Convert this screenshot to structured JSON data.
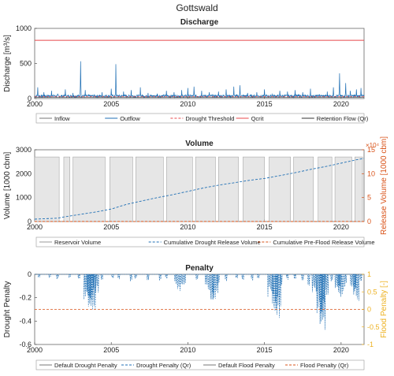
{
  "figure_title": "Gottswald",
  "colors": {
    "blue": "#1f6fb4",
    "red": "#e8484b",
    "orange": "#d95319",
    "gold": "#edb120",
    "gray": "#9a9a9a",
    "lightgray": "#e6e6e6",
    "dark": "#333333"
  },
  "chart_data": [
    {
      "type": "line",
      "title": "Discharge",
      "ylabel": "Discharge [m³/s]",
      "xlabel": "",
      "xlim": [
        2000,
        2021.5
      ],
      "ylim": [
        0,
        1000
      ],
      "yticks": [
        0,
        500,
        1000
      ],
      "xticks": [
        2000,
        2005,
        2010,
        2015,
        2020
      ],
      "grid": false,
      "legend": [
        "Inflow",
        "Outflow",
        "Drought Threshold",
        "Qcrit",
        "Retention Flow (Qr)"
      ],
      "series": [
        {
          "name": "Outflow",
          "style": "solid-blue",
          "peaks": [
            [
              2000.2,
              160
            ],
            [
              2000.6,
              90
            ],
            [
              2001.1,
              110
            ],
            [
              2001.5,
              70
            ],
            [
              2002.0,
              130
            ],
            [
              2002.5,
              80
            ],
            [
              2003.0,
              530
            ],
            [
              2003.3,
              120
            ],
            [
              2003.9,
              60
            ],
            [
              2004.4,
              90
            ],
            [
              2005.0,
              140
            ],
            [
              2005.3,
              490
            ],
            [
              2005.8,
              100
            ],
            [
              2006.3,
              120
            ],
            [
              2006.9,
              160
            ],
            [
              2007.4,
              80
            ],
            [
              2008.0,
              70
            ],
            [
              2008.6,
              110
            ],
            [
              2009.1,
              90
            ],
            [
              2009.6,
              120
            ],
            [
              2010.0,
              150
            ],
            [
              2010.4,
              170
            ],
            [
              2010.9,
              110
            ],
            [
              2011.4,
              90
            ],
            [
              2012.0,
              100
            ],
            [
              2012.5,
              130
            ],
            [
              2013.0,
              170
            ],
            [
              2013.4,
              190
            ],
            [
              2013.9,
              80
            ],
            [
              2014.5,
              90
            ],
            [
              2015.0,
              130
            ],
            [
              2015.5,
              70
            ],
            [
              2016.0,
              110
            ],
            [
              2016.5,
              100
            ],
            [
              2017.0,
              120
            ],
            [
              2017.5,
              90
            ],
            [
              2018.0,
              140
            ],
            [
              2018.6,
              60
            ],
            [
              2019.1,
              100
            ],
            [
              2019.5,
              160
            ],
            [
              2019.9,
              360
            ],
            [
              2020.3,
              220
            ],
            [
              2020.6,
              110
            ],
            [
              2021.0,
              130
            ],
            [
              2021.3,
              150
            ]
          ]
        },
        {
          "name": "Drought Threshold",
          "style": "dashed-red",
          "value": 30
        },
        {
          "name": "Qcrit",
          "style": "solid-red",
          "value": 830
        },
        {
          "name": "Retention Flow (Qr)",
          "style": "solid-dark",
          "value": 15
        }
      ]
    },
    {
      "type": "area",
      "title": "Volume",
      "ylabel": "Volume [1000 cbm]",
      "y2label": "Release Volume [1000 cbm]",
      "y2exp": "×10⁴",
      "xlim": [
        2000,
        2021.5
      ],
      "ylim": [
        0,
        3000
      ],
      "yticks": [
        0,
        1000,
        2000,
        3000
      ],
      "y2lim": [
        0,
        15
      ],
      "y2ticks": [
        0,
        5,
        10,
        15
      ],
      "xticks": [
        2000,
        2005,
        2010,
        2015,
        2020
      ],
      "legend": [
        "Reservoir Volume",
        "Cumulative Drought Release Volume",
        "Cumulative Pre-Flood Release Volume"
      ],
      "reservoir_full_value": 2700,
      "reservoir_intervals": [
        [
          2000.0,
          2001.6
        ],
        [
          2001.9,
          2002.3
        ],
        [
          2002.5,
          2004.6
        ],
        [
          2004.9,
          2006.4
        ],
        [
          2006.6,
          2008.4
        ],
        [
          2008.6,
          2010.3
        ],
        [
          2010.5,
          2011.8
        ],
        [
          2012.0,
          2013.3
        ],
        [
          2013.6,
          2015.0
        ],
        [
          2015.3,
          2016.7
        ],
        [
          2016.9,
          2018.2
        ],
        [
          2018.5,
          2019.4
        ],
        [
          2019.6,
          2020.7
        ],
        [
          2020.9,
          2021.4
        ]
      ],
      "drought_release_cumulative": [
        [
          2000,
          0.5
        ],
        [
          2001.5,
          0.7
        ],
        [
          2002,
          1.0
        ],
        [
          2003,
          1.5
        ],
        [
          2004,
          2.0
        ],
        [
          2005,
          2.6
        ],
        [
          2006,
          3.6
        ],
        [
          2007,
          4.3
        ],
        [
          2008,
          5.0
        ],
        [
          2009,
          5.6
        ],
        [
          2010,
          6.3
        ],
        [
          2011,
          7.0
        ],
        [
          2012,
          7.6
        ],
        [
          2013,
          8.1
        ],
        [
          2014,
          8.6
        ],
        [
          2015,
          9.0
        ],
        [
          2016,
          9.6
        ],
        [
          2017,
          10.2
        ],
        [
          2018,
          10.9
        ],
        [
          2019,
          11.5
        ],
        [
          2020,
          12.2
        ],
        [
          2021,
          12.9
        ],
        [
          2021.5,
          13.2
        ]
      ],
      "preflood_release_cumulative": [
        [
          2000,
          0
        ],
        [
          2021.5,
          0
        ]
      ]
    },
    {
      "type": "line",
      "title": "Penalty",
      "ylabel": "Drought Penalty",
      "y2label": "Flood Penalty [-]",
      "xlim": [
        2000,
        2021.5
      ],
      "ylim": [
        -0.6,
        0
      ],
      "yticks": [
        0,
        -0.2,
        -0.4,
        -0.6
      ],
      "y2lim": [
        -1,
        1
      ],
      "y2ticks": [
        1,
        0.5,
        0,
        -0.5,
        -1
      ],
      "xticks": [
        2000,
        2005,
        2010,
        2015,
        2020
      ],
      "legend": [
        "Default Drought Penalty",
        "Drought Penalty (Qr)",
        "Default Flood Penalty",
        "Flood Penalty (Qr)"
      ],
      "flood_penalty_value": 0,
      "drought_dips": [
        [
          2000.3,
          -0.04
        ],
        [
          2001.0,
          -0.03
        ],
        [
          2001.5,
          -0.05
        ],
        [
          2002.3,
          -0.03
        ],
        [
          2002.9,
          -0.05
        ],
        [
          2003.4,
          -0.22
        ],
        [
          2003.6,
          -0.29
        ],
        [
          2003.8,
          -0.33
        ],
        [
          2004.0,
          -0.18
        ],
        [
          2004.4,
          -0.06
        ],
        [
          2005.1,
          -0.04
        ],
        [
          2005.5,
          -0.06
        ],
        [
          2006.3,
          -0.09
        ],
        [
          2006.6,
          -0.05
        ],
        [
          2007.4,
          -0.05
        ],
        [
          2008.2,
          -0.07
        ],
        [
          2008.6,
          -0.04
        ],
        [
          2009.2,
          -0.1
        ],
        [
          2009.5,
          -0.16
        ],
        [
          2009.8,
          -0.09
        ],
        [
          2010.6,
          -0.05
        ],
        [
          2011.2,
          -0.09
        ],
        [
          2011.5,
          -0.22
        ],
        [
          2011.8,
          -0.27
        ],
        [
          2012.0,
          -0.14
        ],
        [
          2012.5,
          -0.06
        ],
        [
          2013.2,
          -0.04
        ],
        [
          2013.6,
          -0.05
        ],
        [
          2014.2,
          -0.06
        ],
        [
          2014.6,
          -0.04
        ],
        [
          2015.4,
          -0.2
        ],
        [
          2015.7,
          -0.33
        ],
        [
          2015.9,
          -0.43
        ],
        [
          2016.1,
          -0.15
        ],
        [
          2016.5,
          -0.05
        ],
        [
          2017.0,
          -0.04
        ],
        [
          2017.5,
          -0.08
        ],
        [
          2017.9,
          -0.1
        ],
        [
          2018.3,
          -0.18
        ],
        [
          2018.6,
          -0.38
        ],
        [
          2018.8,
          -0.48
        ],
        [
          2019.0,
          -0.25
        ],
        [
          2019.4,
          -0.09
        ],
        [
          2019.8,
          -0.18
        ],
        [
          2020.0,
          -0.27
        ],
        [
          2020.3,
          -0.13
        ],
        [
          2020.8,
          -0.19
        ],
        [
          2021.0,
          -0.24
        ],
        [
          2021.3,
          -0.08
        ]
      ]
    }
  ]
}
